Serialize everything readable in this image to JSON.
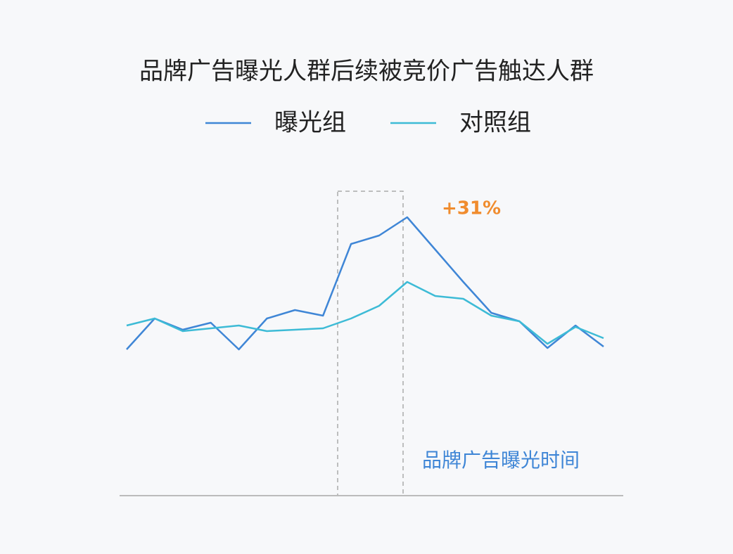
{
  "chart_data": {
    "type": "line",
    "title": "品牌广告曝光人群后续被竞价广告触达人群",
    "categories": [
      null,
      null,
      null,
      null,
      null,
      null,
      null,
      null,
      null,
      null,
      null,
      null,
      null,
      null,
      null,
      null,
      null,
      null
    ],
    "series": [
      {
        "name": "曝光组",
        "color": "#3f86d6",
        "values": [
          52,
          63,
          59,
          61.5,
          52,
          63,
          66,
          64,
          89.5,
          92.5,
          99,
          87.5,
          76,
          65,
          62,
          52.5,
          60.5,
          53
        ]
      },
      {
        "name": "对照组",
        "color": "#3dbbd6",
        "values": [
          60.5,
          63,
          58.5,
          59.5,
          60.5,
          58.5,
          59,
          59.5,
          63,
          67.5,
          76,
          71,
          70,
          64,
          62,
          54,
          60,
          56
        ]
      }
    ],
    "ylim": [
      0,
      110
    ],
    "annotations": [
      "+31%",
      "品牌广告曝光时间"
    ]
  }
}
